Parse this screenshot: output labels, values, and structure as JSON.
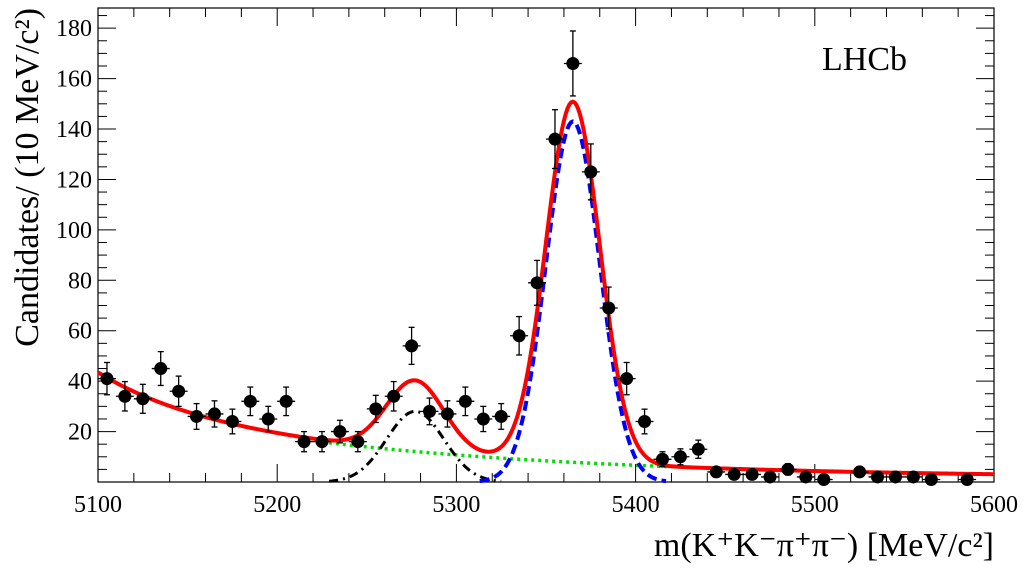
{
  "chart_data": {
    "type": "scatter",
    "title": "",
    "annotation": "LHCb",
    "xlabel": "m(K⁺K⁻π⁺π⁻) [MeV/c²]",
    "ylabel": "Candidates/ (10 MeV/c²)",
    "xlim": [
      5100,
      5600
    ],
    "ylim": [
      0,
      188
    ],
    "x_ticks": [
      5100,
      5200,
      5300,
      5400,
      5500,
      5600
    ],
    "y_ticks": [
      20,
      40,
      60,
      80,
      100,
      120,
      140,
      160,
      180
    ],
    "x_tick_labels": [
      "5100",
      "5200",
      "5300",
      "5400",
      "5500",
      "5600"
    ],
    "y_tick_labels": [
      "20",
      "40",
      "60",
      "80",
      "100",
      "120",
      "140",
      "160",
      "180"
    ],
    "grid": false,
    "legend": "none",
    "data_points": {
      "x": [
        5105,
        5115,
        5125,
        5135,
        5145,
        5155,
        5165,
        5175,
        5185,
        5195,
        5205,
        5215,
        5225,
        5235,
        5245,
        5255,
        5265,
        5275,
        5285,
        5295,
        5305,
        5315,
        5325,
        5335,
        5345,
        5355,
        5365,
        5375,
        5385,
        5395,
        5405,
        5415,
        5425,
        5435,
        5445,
        5455,
        5465,
        5475,
        5485,
        5495,
        5505,
        5525,
        5535,
        5545,
        5555,
        5565,
        5585
      ],
      "y": [
        41,
        34,
        33,
        45,
        36,
        26,
        27,
        24,
        32,
        25,
        32,
        16,
        16,
        20,
        16,
        29,
        34,
        54,
        28,
        27,
        32,
        25,
        26,
        58,
        79,
        136,
        166,
        123,
        69,
        41,
        24,
        9,
        10,
        13,
        4,
        3,
        3,
        2,
        5,
        2,
        1,
        4,
        2,
        2,
        2,
        1,
        1
      ],
      "x_err": 5,
      "color": "#000000"
    },
    "curves": [
      {
        "role": "total fit",
        "color": "#ff0000",
        "style": "solid"
      },
      {
        "role": "signal",
        "color": "#0000ff",
        "style": "dashed"
      },
      {
        "role": "peaking background",
        "color": "#000000",
        "style": "dash-dot"
      },
      {
        "role": "combinatorial background",
        "color": "#00dd00",
        "style": "dotted"
      }
    ],
    "model": {
      "signal": {
        "mean": 5365,
        "sigma": 15,
        "amplitude": 143
      },
      "peaking": {
        "mean": 5277,
        "sigma": 16,
        "amplitude": 28
      },
      "combinatorial": {
        "a0": 42,
        "a_decay": 37,
        "b_amp": 16,
        "b_center": 5230,
        "b_width": 120
      }
    }
  }
}
